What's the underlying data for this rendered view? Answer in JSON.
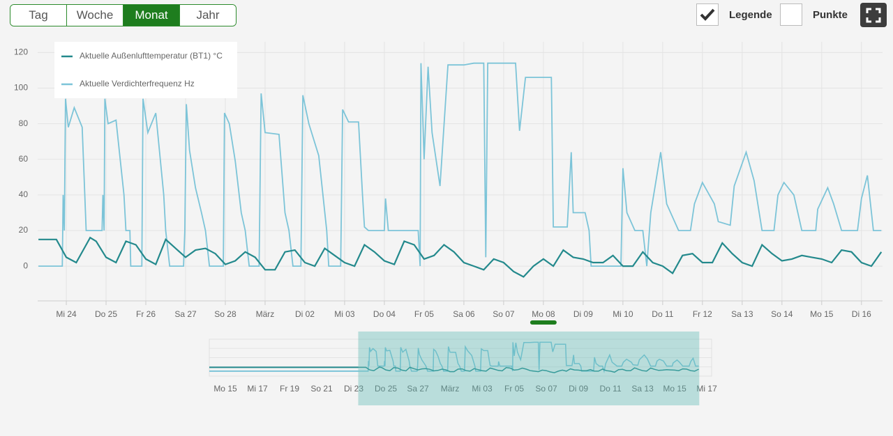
{
  "toolbar": {
    "tabs": [
      "Tag",
      "Woche",
      "Monat",
      "Jahr"
    ],
    "active": 2,
    "legend_label": "Legende",
    "legend_checked": true,
    "points_label": "Punkte",
    "points_checked": false
  },
  "chart_data": {
    "type": "line",
    "xlim": [
      0.28,
      21.53
    ],
    "ylim": [
      -19.5,
      126
    ],
    "yticks": [
      0,
      20,
      40,
      60,
      80,
      100,
      120
    ],
    "xticks": [
      {
        "value": 1,
        "label": "Mi 24"
      },
      {
        "value": 2,
        "label": "Do 25"
      },
      {
        "value": 3,
        "label": "Fr 26"
      },
      {
        "value": 4,
        "label": "Sa 27"
      },
      {
        "value": 5,
        "label": "So 28"
      },
      {
        "value": 6,
        "label": "März"
      },
      {
        "value": 7,
        "label": "Di 02"
      },
      {
        "value": 8,
        "label": "Mi 03"
      },
      {
        "value": 9,
        "label": "Do 04"
      },
      {
        "value": 10,
        "label": "Fr 05"
      },
      {
        "value": 11,
        "label": "Sa 06"
      },
      {
        "value": 12,
        "label": "So 07"
      },
      {
        "value": 13,
        "label": "Mo 08"
      },
      {
        "value": 14,
        "label": "Di 09"
      },
      {
        "value": 15,
        "label": "Mi 10"
      },
      {
        "value": 16,
        "label": "Do 11"
      },
      {
        "value": 17,
        "label": "Fr 12"
      },
      {
        "value": 18,
        "label": "Sa 13"
      },
      {
        "value": 19,
        "label": "So 14"
      },
      {
        "value": 20,
        "label": "Mo 15"
      },
      {
        "value": 21,
        "label": "Di 16"
      }
    ],
    "highlight_tick": 12,
    "grid": true,
    "legend": "top-left",
    "series": [
      {
        "name": "Aktuelle Außenlufttemperatur (BT1) °C",
        "color": "#23898c",
        "x": [
          0.3,
          0.75,
          1.0,
          1.25,
          1.5,
          1.6,
          1.75,
          2.0,
          2.25,
          2.5,
          2.75,
          3.0,
          3.25,
          3.5,
          3.75,
          4.0,
          4.25,
          4.5,
          4.75,
          5.0,
          5.25,
          5.5,
          5.75,
          6.0,
          6.25,
          6.5,
          6.75,
          7.0,
          7.25,
          7.5,
          7.75,
          8.0,
          8.25,
          8.5,
          8.75,
          9.0,
          9.25,
          9.5,
          9.75,
          10.0,
          10.25,
          10.5,
          10.75,
          11.0,
          11.25,
          11.5,
          11.75,
          12.0,
          12.25,
          12.5,
          12.75,
          13.0,
          13.25,
          13.5,
          13.75,
          14.0,
          14.25,
          14.5,
          14.75,
          15.0,
          15.25,
          15.5,
          15.75,
          16.0,
          16.25,
          16.5,
          16.75,
          17.0,
          17.25,
          17.5,
          17.75,
          18.0,
          18.25,
          18.5,
          18.75,
          19.0,
          19.25,
          19.5,
          19.75,
          20.0,
          20.25,
          20.5,
          20.75,
          21.0,
          21.25,
          21.5
        ],
        "values": [
          15,
          15,
          5,
          2,
          12,
          16,
          14,
          5,
          2,
          14,
          12,
          4,
          1,
          15,
          10,
          5,
          9,
          10,
          7,
          1,
          3,
          8,
          5,
          -2,
          -2,
          8,
          9,
          2,
          0,
          10,
          6,
          2,
          0,
          12,
          8,
          3,
          1,
          14,
          12,
          4,
          6,
          12,
          8,
          2,
          0,
          -2,
          4,
          2,
          -3,
          -6,
          0,
          4,
          0,
          9,
          5,
          4,
          2,
          2,
          6,
          0,
          0,
          8,
          2,
          0,
          -4,
          6,
          7,
          2,
          2,
          13,
          7,
          2,
          0,
          12,
          7,
          3,
          4,
          6,
          5,
          4,
          2,
          9,
          8,
          2,
          0,
          8
        ]
      },
      {
        "name": "Aktuelle Verdichterfrequenz Hz",
        "color": "#7cc4d8",
        "x": [
          0.3,
          0.9,
          0.92,
          0.95,
          0.98,
          1.05,
          1.2,
          1.4,
          1.5,
          1.9,
          1.92,
          1.95,
          1.97,
          2.05,
          2.25,
          2.45,
          2.5,
          2.6,
          2.62,
          2.9,
          2.93,
          3.05,
          3.25,
          3.45,
          3.5,
          3.6,
          3.95,
          3.98,
          4.02,
          4.1,
          4.25,
          4.4,
          4.5,
          4.6,
          4.95,
          4.98,
          5.1,
          5.25,
          5.4,
          5.5,
          5.6,
          5.85,
          5.9,
          6.0,
          6.35,
          6.5,
          6.6,
          6.7,
          6.9,
          6.95,
          7.1,
          7.35,
          7.55,
          7.6,
          7.9,
          7.95,
          8.1,
          8.35,
          8.45,
          8.5,
          8.6,
          9.0,
          9.03,
          9.1,
          9.5,
          9.85,
          9.9,
          9.92,
          10.0,
          10.1,
          10.2,
          10.4,
          10.6,
          11.0,
          11.25,
          11.5,
          11.55,
          11.6,
          12.3,
          12.4,
          12.55,
          13.2,
          13.25,
          13.6,
          13.7,
          13.75,
          14.05,
          14.15,
          14.2,
          14.95,
          15.0,
          15.1,
          15.3,
          15.5,
          15.6,
          15.7,
          15.95,
          16.1,
          16.4,
          16.7,
          16.8,
          17.0,
          17.3,
          17.4,
          17.7,
          17.8,
          18.1,
          18.3,
          18.5,
          18.8,
          18.9,
          19.05,
          19.3,
          19.5,
          19.85,
          19.9,
          20.15,
          20.3,
          20.5,
          20.9,
          21.0,
          21.15,
          21.3,
          21.5
        ],
        "values": [
          0,
          0,
          40,
          20,
          94,
          78,
          89,
          78,
          20,
          20,
          40,
          20,
          94,
          80,
          82,
          40,
          20,
          20,
          0,
          0,
          94,
          75,
          86,
          40,
          20,
          0,
          0,
          20,
          91,
          65,
          44,
          30,
          20,
          0,
          0,
          86,
          80,
          59,
          30,
          20,
          0,
          0,
          97,
          75,
          74,
          30,
          20,
          0,
          0,
          96,
          80,
          62,
          20,
          0,
          0,
          88,
          81,
          81,
          40,
          22,
          20,
          20,
          38,
          20,
          20,
          20,
          0,
          114,
          60,
          112,
          75,
          45,
          113,
          113,
          114,
          114,
          5,
          114,
          114,
          76,
          106,
          106,
          22,
          22,
          64,
          30,
          30,
          20,
          0,
          0,
          55,
          30,
          20,
          20,
          0,
          30,
          64,
          35,
          20,
          20,
          35,
          47,
          35,
          25,
          23,
          45,
          64,
          48,
          20,
          20,
          40,
          47,
          40,
          20,
          20,
          32,
          44,
          35,
          20,
          20,
          38,
          51,
          20,
          20
        ]
      }
    ]
  },
  "navigator": {
    "xlim": [
      -9,
      22.3
    ],
    "xticks": [
      {
        "value": -8,
        "label": "Mo 15"
      },
      {
        "value": -6,
        "label": "Mi 17"
      },
      {
        "value": -4,
        "label": "Fr 19"
      },
      {
        "value": -2,
        "label": "So 21"
      },
      {
        "value": 0,
        "label": "Di 23"
      },
      {
        "value": 2,
        "label": "Do 25"
      },
      {
        "value": 4,
        "label": "Sa 27"
      },
      {
        "value": 6,
        "label": "März"
      },
      {
        "value": 8,
        "label": "Mi 03"
      },
      {
        "value": 10,
        "label": "Fr 05"
      },
      {
        "value": 12,
        "label": "So 07"
      },
      {
        "value": 14,
        "label": "Di 09"
      },
      {
        "value": 16,
        "label": "Do 11"
      },
      {
        "value": 18,
        "label": "Sa 13"
      },
      {
        "value": 20,
        "label": "Mo 15"
      },
      {
        "value": 22,
        "label": "Mi 17"
      }
    ]
  }
}
